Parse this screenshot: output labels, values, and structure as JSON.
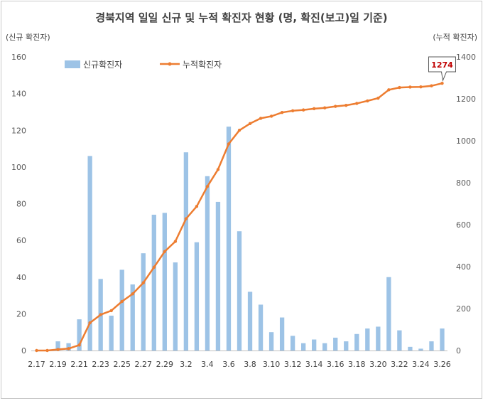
{
  "chart_data": {
    "type": "bar+line",
    "title": "경북지역 일일 신규 및 누적 확진자 현황 (명, 확진(보고)일 기준)",
    "ylabel_left": "(신규 확진자)",
    "ylabel_right": "(누적 확진자)",
    "ylim_left": [
      0,
      160
    ],
    "ylim_right": [
      0,
      1400
    ],
    "yticks_left": [
      0,
      20,
      40,
      60,
      80,
      100,
      120,
      140,
      160
    ],
    "yticks_right": [
      0,
      200,
      400,
      600,
      800,
      1000,
      1200,
      1400
    ],
    "grid": false,
    "legend": "top-left",
    "x": [
      "2.17",
      "2.18",
      "2.19",
      "2.20",
      "2.21",
      "2.22",
      "2.23",
      "2.24",
      "2.25",
      "2.26",
      "2.27",
      "2.28",
      "2.29",
      "3.1",
      "3.2",
      "3.3",
      "3.4",
      "3.5",
      "3.6",
      "3.7",
      "3.8",
      "3.9",
      "3.10",
      "3.11",
      "3.12",
      "3.13",
      "3.14",
      "3.15",
      "3.16",
      "3.17",
      "3.18",
      "3.19",
      "3.20",
      "3.21",
      "3.22",
      "3.23",
      "3.24",
      "3.25",
      "3.26"
    ],
    "xtick_labels": [
      "2.17",
      "",
      "2.19",
      "",
      "2.21",
      "",
      "2.23",
      "",
      "2.25",
      "",
      "2.27",
      "",
      "2.29",
      "",
      "3.2",
      "",
      "3.4",
      "",
      "3.6",
      "",
      "3.8",
      "",
      "3.10",
      "",
      "3.12",
      "",
      "3.14",
      "",
      "3.16",
      "",
      "3.18",
      "",
      "3.20",
      "",
      "3.22",
      "",
      "3.24",
      "",
      "3.26"
    ],
    "series": [
      {
        "name": "신규확진자",
        "type": "bar",
        "axis": "left",
        "color": "#9dc3e6",
        "values": [
          0,
          0,
          5,
          4,
          17,
          106,
          39,
          19,
          44,
          36,
          53,
          74,
          75,
          48,
          108,
          59,
          95,
          81,
          122,
          65,
          32,
          25,
          10,
          18,
          8,
          4,
          6,
          4,
          7,
          5,
          9,
          12,
          13,
          40,
          11,
          2,
          1,
          5,
          12
        ]
      },
      {
        "name": "누적확진자",
        "type": "line",
        "axis": "right",
        "color": "#ed7d31",
        "values": [
          0,
          0,
          5,
          9,
          26,
          132,
          171,
          190,
          234,
          270,
          323,
          397,
          472,
          520,
          628,
          687,
          782,
          863,
          985,
          1050,
          1082,
          1107,
          1117,
          1135,
          1143,
          1147,
          1153,
          1157,
          1164,
          1169,
          1178,
          1190,
          1203,
          1243,
          1254,
          1256,
          1257,
          1262,
          1274
        ]
      }
    ],
    "annotations": [
      {
        "text": "1274",
        "x": "3.26",
        "series": "누적확진자",
        "color": "#c00000"
      }
    ]
  }
}
